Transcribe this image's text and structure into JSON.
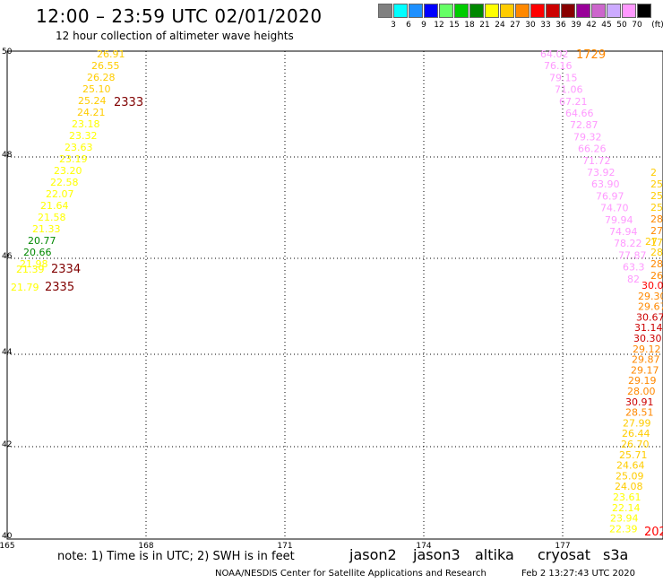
{
  "header": {
    "title": "12:00 – 23:59 UTC 02/01/2020",
    "subtitle": "12 hour collection of altimeter wave heights"
  },
  "legend": {
    "unit": "(ft)",
    "items": [
      {
        "label": "3",
        "color": "#808080"
      },
      {
        "label": "6",
        "color": "#00ffff"
      },
      {
        "label": "9",
        "color": "#1e90ff"
      },
      {
        "label": "12",
        "color": "#0000ff"
      },
      {
        "label": "15",
        "color": "#66ff66"
      },
      {
        "label": "18",
        "color": "#00cc00"
      },
      {
        "label": "21",
        "color": "#008800"
      },
      {
        "label": "24",
        "color": "#ffff00"
      },
      {
        "label": "27",
        "color": "#ffcc00"
      },
      {
        "label": "30",
        "color": "#ff8800"
      },
      {
        "label": "33",
        "color": "#ff0000"
      },
      {
        "label": "36",
        "color": "#cc0000"
      },
      {
        "label": "39",
        "color": "#880000"
      },
      {
        "label": "42",
        "color": "#990099"
      },
      {
        "label": "45",
        "color": "#cc66cc"
      },
      {
        "label": "50",
        "color": "#ccaaff"
      },
      {
        "label": "70",
        "color": "#ff99ff"
      },
      {
        "label": "",
        "color": "#000000"
      }
    ]
  },
  "axes": {
    "lat_labels": [
      "50",
      "48",
      "46",
      "44",
      "42",
      "40"
    ],
    "lon_labels": [
      "165",
      "168",
      "171",
      "174",
      "177"
    ]
  },
  "tracks": [
    {
      "time": "2333",
      "time_color": "#800000",
      "points": [
        {
          "v": "26.91",
          "c": "#ffcc00"
        },
        {
          "v": "26.55",
          "c": "#ffcc00"
        },
        {
          "v": "26.28",
          "c": "#ffcc00"
        },
        {
          "v": "25.10",
          "c": "#ffcc00"
        },
        {
          "v": "25.24",
          "c": "#ffcc00"
        },
        {
          "v": "24.21",
          "c": "#ffcc00"
        },
        {
          "v": "23.18",
          "c": "#ffff00"
        },
        {
          "v": "23.32",
          "c": "#ffff00"
        },
        {
          "v": "23.63",
          "c": "#ffff00"
        },
        {
          "v": "23.19",
          "c": "#ffff00"
        },
        {
          "v": "23.20",
          "c": "#ffff00"
        },
        {
          "v": "22.58",
          "c": "#ffff00"
        },
        {
          "v": "22.07",
          "c": "#ffff00"
        },
        {
          "v": "21.64",
          "c": "#ffff00"
        },
        {
          "v": "21.58",
          "c": "#ffff00"
        },
        {
          "v": "21.33",
          "c": "#ffff00"
        },
        {
          "v": "20.77",
          "c": "#008800"
        },
        {
          "v": "20.66",
          "c": "#008800"
        },
        {
          "v": "21.98",
          "c": "#ffff00"
        }
      ]
    },
    {
      "time": "2334",
      "time_color": "#800000",
      "points": [
        {
          "v": "21.39",
          "c": "#ffff00"
        }
      ]
    },
    {
      "time": "2335",
      "time_color": "#800000",
      "points": [
        {
          "v": "21.79",
          "c": "#ffff00"
        }
      ]
    },
    {
      "time": "1729",
      "time_color": "#ff8800",
      "points": [
        {
          "v": "64.02",
          "c": "#ff99ff"
        },
        {
          "v": "76.16",
          "c": "#ff99ff"
        },
        {
          "v": "79.15",
          "c": "#ff99ff"
        },
        {
          "v": "71.06",
          "c": "#ff99ff"
        },
        {
          "v": "67.21",
          "c": "#ff99ff"
        },
        {
          "v": "64.66",
          "c": "#ff99ff"
        },
        {
          "v": "72.87",
          "c": "#ff99ff"
        },
        {
          "v": "79.32",
          "c": "#ff99ff"
        },
        {
          "v": "66.26",
          "c": "#ff99ff"
        },
        {
          "v": "71.72",
          "c": "#ff99ff"
        },
        {
          "v": "73.92",
          "c": "#ff99ff"
        },
        {
          "v": "63.90",
          "c": "#ff99ff"
        },
        {
          "v": "76.97",
          "c": "#ff99ff"
        },
        {
          "v": "74.70",
          "c": "#ff99ff"
        },
        {
          "v": "79.94",
          "c": "#ff99ff"
        },
        {
          "v": "74.94",
          "c": "#ff99ff"
        },
        {
          "v": "78.22",
          "c": "#ff99ff"
        },
        {
          "v": "77.87",
          "c": "#ff99ff"
        },
        {
          "v": "63.3",
          "c": "#ff99ff"
        },
        {
          "v": "82",
          "c": "#ff99ff"
        }
      ]
    },
    {
      "time": "",
      "time_color": "#ff0000",
      "points": [
        {
          "v": "30.0",
          "c": "#ff0000"
        },
        {
          "v": "29.30",
          "c": "#ff8800"
        },
        {
          "v": "29.67",
          "c": "#ff8800"
        },
        {
          "v": "30.67",
          "c": "#cc0000"
        },
        {
          "v": "31.14",
          "c": "#cc0000"
        },
        {
          "v": "30.30",
          "c": "#cc0000"
        },
        {
          "v": "29.12",
          "c": "#ff8800"
        },
        {
          "v": "29.87",
          "c": "#ff8800"
        },
        {
          "v": "29.17",
          "c": "#ff8800"
        },
        {
          "v": "29.19",
          "c": "#ff8800"
        },
        {
          "v": "28.00",
          "c": "#ff8800"
        },
        {
          "v": "30.91",
          "c": "#cc0000"
        },
        {
          "v": "28.51",
          "c": "#ff8800"
        },
        {
          "v": "27.99",
          "c": "#ffcc00"
        },
        {
          "v": "26.44",
          "c": "#ffcc00"
        },
        {
          "v": "26.70",
          "c": "#ffcc00"
        },
        {
          "v": "25.71",
          "c": "#ffcc00"
        },
        {
          "v": "24.64",
          "c": "#ffcc00"
        },
        {
          "v": "25.09",
          "c": "#ffcc00"
        },
        {
          "v": "24.08",
          "c": "#ffcc00"
        },
        {
          "v": "23.61",
          "c": "#ffff00"
        },
        {
          "v": "22.14",
          "c": "#ffff00"
        },
        {
          "v": "23.94",
          "c": "#ffff00"
        },
        {
          "v": "22.39",
          "c": "#ffff00"
        }
      ]
    },
    {
      "time": "202",
      "time_color": "#ff0000",
      "points": []
    },
    {
      "time": "",
      "time_color": "#ffcc00",
      "points": [
        {
          "v": "2",
          "c": "#ffcc00"
        },
        {
          "v": "25",
          "c": "#ffcc00"
        },
        {
          "v": "25",
          "c": "#ffcc00"
        },
        {
          "v": "25",
          "c": "#ffcc00"
        },
        {
          "v": "28",
          "c": "#ff8800"
        },
        {
          "v": "27.",
          "c": "#ff8800"
        },
        {
          "v": "27",
          "c": "#ffcc00"
        },
        {
          "v": "17",
          "c": "#ffcc00"
        },
        {
          "v": "28.",
          "c": "#ffcc00"
        },
        {
          "v": "28.0",
          "c": "#ff8800"
        },
        {
          "v": "26.4",
          "c": "#ff8800"
        }
      ]
    }
  ],
  "footer": {
    "note": "note:  1) Time is in UTC;  2) SWH is in feet",
    "satellites": [
      {
        "name": "jason2",
        "color": "#0000ff"
      },
      {
        "name": "jason3",
        "color": "#008800"
      },
      {
        "name": "altika",
        "color": "#ff8800"
      },
      {
        "name": "cryosat",
        "color": "#ff0000"
      },
      {
        "name": "s3a",
        "color": "#cc0000"
      }
    ],
    "credit": "NOAA/NESDIS Center for Satellite Applications and Research",
    "timestamp": "Feb  2 13:27:43 UTC 2020"
  }
}
